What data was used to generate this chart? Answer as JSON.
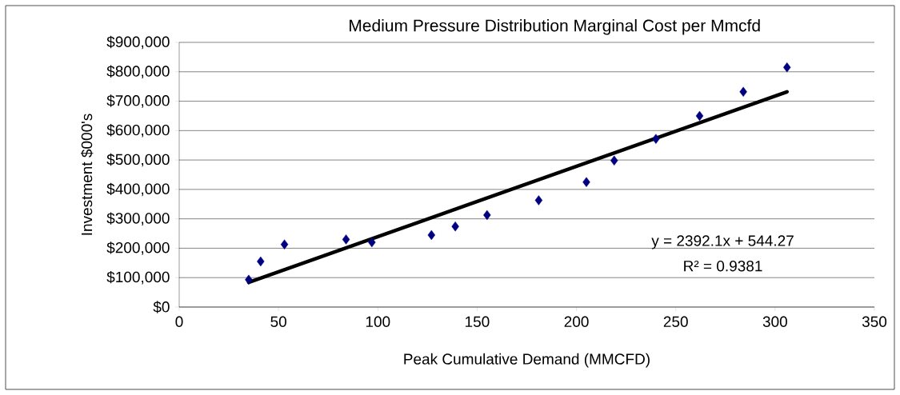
{
  "chart_data": {
    "type": "scatter",
    "title": "Medium Pressure Distribution Marginal Cost per Mmcfd",
    "xlabel": "Peak Cumulative Demand (MMCFD)",
    "ylabel": "Investment $000's",
    "series": [
      {
        "type": "scatter",
        "color": "#000080",
        "marker": "diamond",
        "x": [
          35,
          41,
          53,
          84,
          97,
          127,
          139,
          155,
          181,
          205,
          219,
          240,
          262,
          284,
          306
        ],
        "values": [
          93000,
          155000,
          213000,
          230000,
          220000,
          245000,
          274000,
          313000,
          363000,
          425000,
          498000,
          572000,
          650000,
          732000,
          815000
        ]
      },
      {
        "type": "line",
        "color": "#000000",
        "marker": "none",
        "line_style": "solid",
        "x": [
          35,
          306
        ],
        "values": [
          84000,
          732000
        ]
      }
    ],
    "xlim": [
      0,
      350
    ],
    "ylim": [
      0,
      900000
    ],
    "xticks": [
      0,
      50,
      100,
      150,
      200,
      250,
      300,
      350
    ],
    "yticks": [
      {
        "value": 0,
        "label": "$0"
      },
      {
        "value": 100000,
        "label": "$100,000"
      },
      {
        "value": 200000,
        "label": "$200,000"
      },
      {
        "value": 300000,
        "label": "$300,000"
      },
      {
        "value": 400000,
        "label": "$400,000"
      },
      {
        "value": 500000,
        "label": "$500,000"
      },
      {
        "value": 600000,
        "label": "$600,000"
      },
      {
        "value": 700000,
        "label": "$700,000"
      },
      {
        "value": 800000,
        "label": "$800,000"
      },
      {
        "value": 900000,
        "label": "$900,000"
      }
    ],
    "grid": "y",
    "annotations": [
      "y = 2392.1x + 544.27",
      "R² = 0.9381"
    ]
  }
}
